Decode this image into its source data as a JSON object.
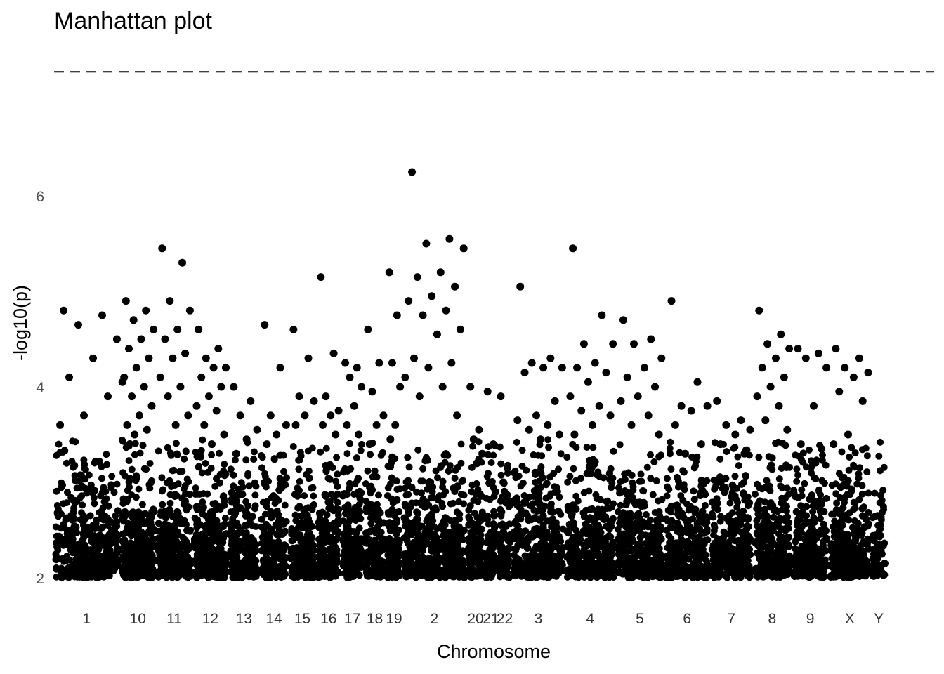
{
  "chart_data": {
    "type": "scatter",
    "title": "Manhattan plot",
    "xlabel": "Chromosome",
    "ylabel": "-log10(p)",
    "ylim": [
      2,
      7.3
    ],
    "y_ticks": [
      2,
      4,
      6
    ],
    "grid": false,
    "legend": "none",
    "point_color": "#000000",
    "threshold": {
      "value": 7.3,
      "style": "dashed",
      "color": "#000000"
    },
    "x_unit": "cumulative genomic position (Mb)",
    "xlim": [
      0,
      3360
    ],
    "categories": [
      "1",
      "10",
      "11",
      "12",
      "13",
      "14",
      "15",
      "16",
      "17",
      "18",
      "19",
      "2",
      "20",
      "21",
      "22",
      "3",
      "4",
      "5",
      "6",
      "7",
      "8",
      "9",
      "X",
      "Y"
    ],
    "chromosomes": [
      {
        "name": "1",
        "start": 0,
        "end": 249,
        "n": 420,
        "peaks": [
          4.8,
          4.75,
          4.65,
          4.5,
          4.3,
          4.1,
          3.9,
          3.7,
          3.6
        ]
      },
      {
        "name": "10",
        "start": 253,
        "end": 387,
        "n": 330,
        "peaks": [
          4.9,
          4.8,
          4.7,
          4.6,
          4.5,
          4.4,
          4.3,
          4.2,
          4.1,
          4.0,
          3.9,
          3.8,
          3.7,
          3.6,
          3.55,
          3.5,
          4.05
        ]
      },
      {
        "name": "11",
        "start": 391,
        "end": 526,
        "n": 270,
        "peaks": [
          5.45,
          5.3,
          4.9,
          4.8,
          4.6,
          4.5,
          4.35,
          4.3,
          4.1,
          4.0,
          3.9,
          3.7,
          3.6
        ]
      },
      {
        "name": "12",
        "start": 530,
        "end": 663,
        "n": 300,
        "peaks": [
          4.6,
          4.4,
          4.3,
          4.2,
          4.2,
          4.1,
          4.0,
          3.9,
          3.8,
          3.75,
          3.6,
          3.5,
          3.4
        ]
      },
      {
        "name": "13",
        "start": 667,
        "end": 782,
        "n": 200,
        "peaks": [
          4.0,
          3.85,
          3.7,
          3.55,
          3.45,
          3.3
        ]
      },
      {
        "name": "14",
        "start": 786,
        "end": 893,
        "n": 200,
        "peaks": [
          4.65,
          4.2,
          3.7,
          3.6,
          3.5,
          3.4
        ]
      },
      {
        "name": "15",
        "start": 897,
        "end": 999,
        "n": 190,
        "peaks": [
          4.6,
          4.3,
          3.9,
          3.85,
          3.7,
          3.6
        ]
      },
      {
        "name": "16",
        "start": 1003,
        "end": 1093,
        "n": 190,
        "peaks": [
          5.15,
          4.35,
          3.9,
          3.75,
          3.7,
          3.6,
          3.5
        ]
      },
      {
        "name": "17",
        "start": 1097,
        "end": 1180,
        "n": 180,
        "peaks": [
          4.25,
          4.2,
          4.1,
          4.0,
          3.8,
          3.6,
          3.5
        ]
      },
      {
        "name": "18",
        "start": 1184,
        "end": 1264,
        "n": 160,
        "peaks": [
          4.6,
          4.25,
          3.95,
          3.7,
          3.6,
          3.4
        ]
      },
      {
        "name": "19",
        "start": 1268,
        "end": 1327,
        "n": 150,
        "peaks": [
          5.2,
          4.75,
          4.25,
          4.0,
          3.6,
          3.45
        ]
      },
      {
        "name": "2",
        "start": 1331,
        "end": 1573,
        "n": 440,
        "peaks": [
          6.25,
          5.55,
          5.5,
          5.45,
          5.2,
          5.15,
          5.05,
          4.95,
          4.9,
          4.8,
          4.75,
          4.6,
          4.55,
          4.3,
          4.25,
          4.2,
          4.1,
          4.0,
          3.9,
          3.7
        ]
      },
      {
        "name": "20",
        "start": 1577,
        "end": 1641,
        "n": 140,
        "peaks": [
          4.0,
          3.55,
          3.45,
          3.3,
          3.2
        ]
      },
      {
        "name": "21",
        "start": 1645,
        "end": 1691,
        "n": 90,
        "peaks": [
          3.95,
          3.4,
          3.0,
          2.9
        ]
      },
      {
        "name": "22",
        "start": 1695,
        "end": 1746,
        "n": 100,
        "peaks": [
          3.9,
          3.15,
          3.0,
          2.8
        ]
      },
      {
        "name": "3",
        "start": 1750,
        "end": 1948,
        "n": 370,
        "peaks": [
          5.05,
          4.3,
          4.25,
          4.2,
          4.2,
          4.15,
          3.85,
          3.7,
          3.65,
          3.6,
          3.55,
          3.5,
          3.45
        ]
      },
      {
        "name": "4",
        "start": 1952,
        "end": 2142,
        "n": 360,
        "peaks": [
          5.45,
          4.75,
          4.45,
          4.45,
          4.25,
          4.2,
          4.15,
          4.05,
          3.9,
          3.8,
          3.75,
          3.7,
          3.6,
          3.5
        ]
      },
      {
        "name": "5",
        "start": 2146,
        "end": 2327,
        "n": 340,
        "peaks": [
          4.7,
          4.5,
          4.45,
          4.3,
          4.2,
          4.1,
          4.0,
          3.9,
          3.85,
          3.7,
          3.6,
          3.5
        ]
      },
      {
        "name": "6",
        "start": 2331,
        "end": 2502,
        "n": 320,
        "peaks": [
          4.9,
          4.05,
          3.8,
          3.8,
          3.75,
          3.6,
          3.4,
          3.3
        ]
      },
      {
        "name": "7",
        "start": 2506,
        "end": 2665,
        "n": 300,
        "peaks": [
          3.85,
          3.65,
          3.6,
          3.55,
          3.5,
          3.4,
          3.3
        ]
      },
      {
        "name": "8",
        "start": 2669,
        "end": 2814,
        "n": 280,
        "peaks": [
          4.8,
          4.55,
          4.45,
          4.4,
          4.3,
          4.2,
          4.1,
          4.0,
          3.9,
          3.8,
          3.65,
          3.55
        ]
      },
      {
        "name": "9",
        "start": 2818,
        "end": 2956,
        "n": 260,
        "peaks": [
          4.4,
          4.35,
          4.3,
          4.2,
          3.8,
          3.4,
          3.35
        ]
      },
      {
        "name": "X",
        "start": 2960,
        "end": 3116,
        "n": 300,
        "peaks": [
          4.4,
          4.3,
          4.2,
          4.15,
          4.1,
          3.95,
          3.85,
          3.5,
          3.4
        ]
      },
      {
        "name": "Y",
        "start": 3120,
        "end": 3177,
        "n": 60,
        "peaks": [
          2.3,
          2.25,
          2.2,
          2.15
        ]
      }
    ]
  }
}
